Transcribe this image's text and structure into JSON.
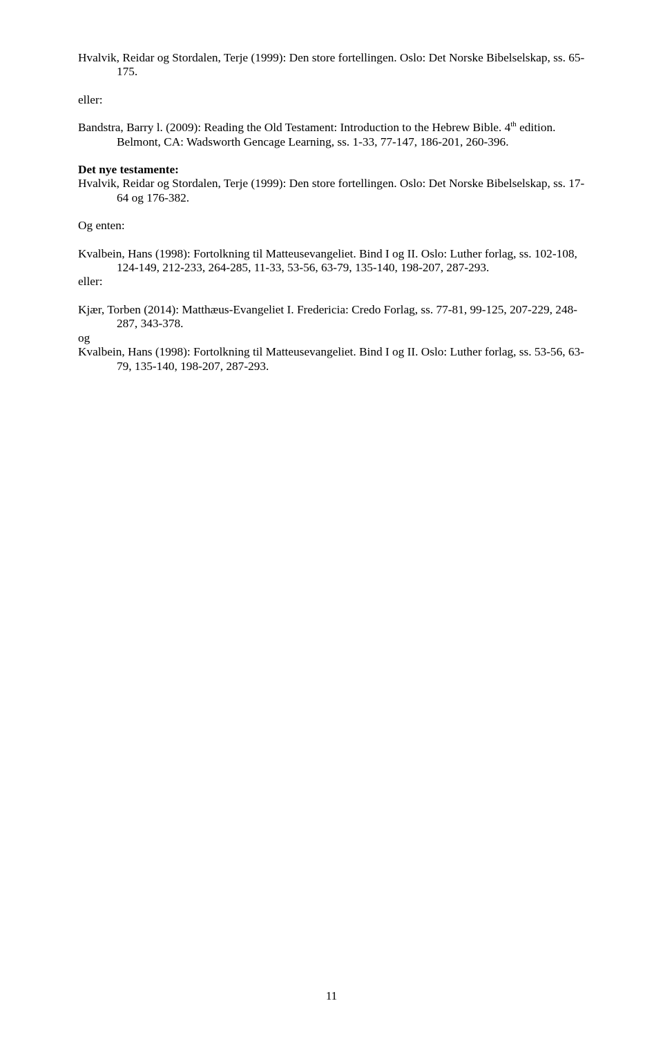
{
  "entries": {
    "e1": "Hvalvik, Reidar og Stordalen, Terje (1999): Den store fortellingen. Oslo: Det Norske Bibelselskap, ss. 65-175.",
    "eller1": "eller:",
    "e2a": "Bandstra, Barry l. (2009): Reading the Old Testament: Introduction to the Hebrew Bible. 4",
    "e2sup": "th",
    "e2b": " edition. Belmont, CA: Wadsworth Gencage Learning, ss. 1-33, 77-147, 186-201, 260-396.",
    "h1": "Det nye testamente:",
    "e3": "Hvalvik, Reidar og Stordalen, Terje (1999): Den store fortellingen. Oslo: Det Norske Bibelselskap, ss. 17-64 og 176-382.",
    "ogenten": "Og enten:",
    "e4": "Kvalbein, Hans (1998): Fortolkning til Matteusevangeliet. Bind I og II. Oslo: Luther forlag, ss. 102-108, 124-149, 212-233, 264-285, 11-33, 53-56, 63-79, 135-140, 198-207, 287-293.",
    "eller2": "eller:",
    "e5": "Kjær, Torben (2014):  Matthæus-Evangeliet I. Fredericia: Credo Forlag, ss. 77-81, 99-125, 207-229, 248-287, 343-378.",
    "og": "og",
    "e6": "Kvalbein, Hans (1998): Fortolkning til Matteusevangeliet. Bind I og II. Oslo: Luther forlag, ss. 53-56, 63-79, 135-140, 198-207, 287-293."
  },
  "pageNumber": "11"
}
